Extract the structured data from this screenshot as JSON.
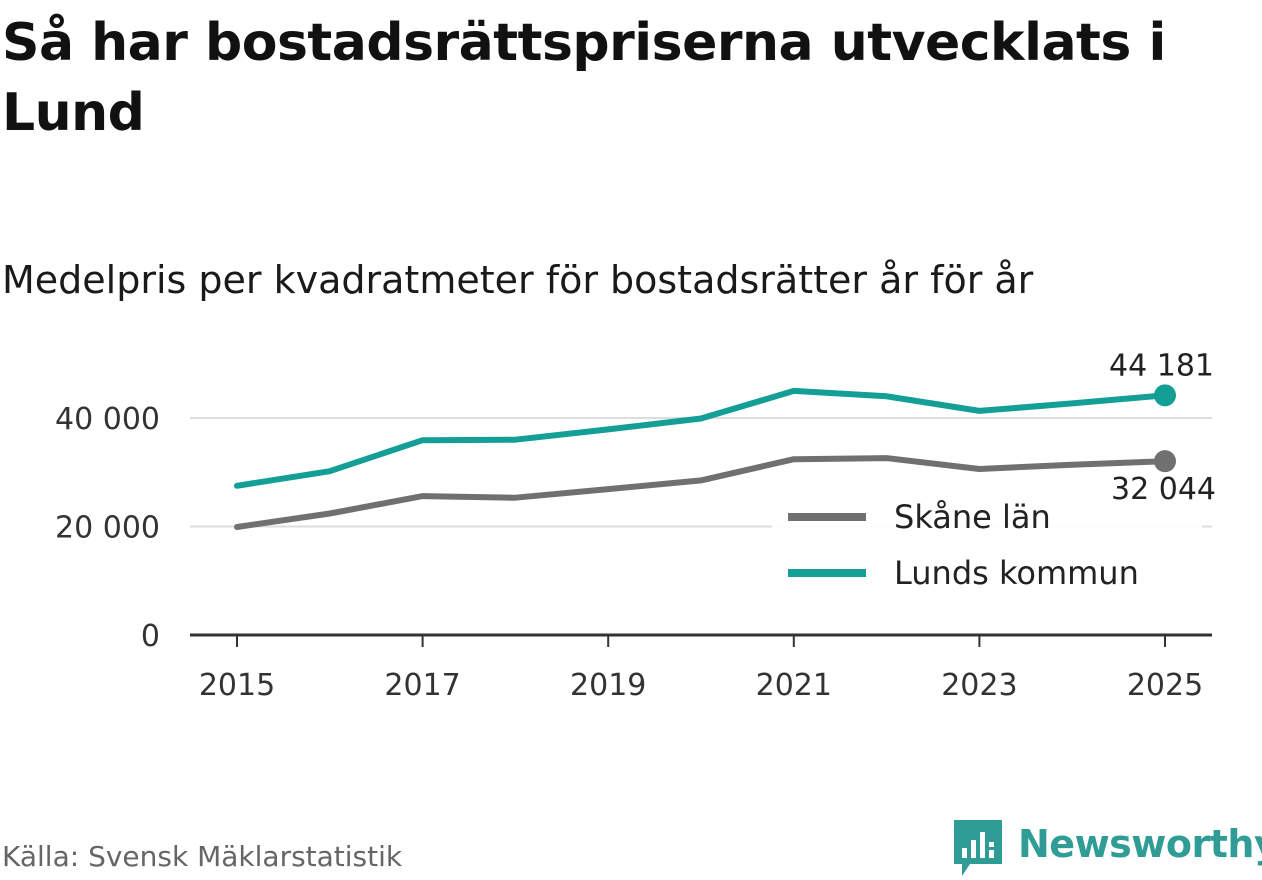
{
  "title": "Så har bostadsrättspriserna utvecklats i Lund",
  "subtitle": "Medelpris per kvadratmeter för bostadsrätter år för år",
  "source": "Källa: Svensk Mäklarstatistik",
  "brand": {
    "name": "Newsworthy",
    "icon": "newsworthy-logo-icon",
    "color": "#2f9c95"
  },
  "colors": {
    "skane": "#707070",
    "lund": "#139e96",
    "grid": "#dddddd",
    "axis": "#333333"
  },
  "chart_data": {
    "type": "line",
    "title": "Så har bostadsrättspriserna utvecklats i Lund",
    "subtitle": "Medelpris per kvadratmeter för bostadsrätter år för år",
    "xlabel": "",
    "ylabel": "",
    "x": [
      2015,
      2016,
      2017,
      2018,
      2019,
      2020,
      2021,
      2022,
      2023,
      2024,
      2025
    ],
    "xticks": [
      "2015",
      "2017",
      "2019",
      "2021",
      "2023",
      "2025"
    ],
    "xlim": [
      2015,
      2025
    ],
    "ylim": [
      0,
      44181
    ],
    "yticks": [
      {
        "value": 0,
        "label": "0"
      },
      {
        "value": 20000,
        "label": "20 000"
      },
      {
        "value": 40000,
        "label": "40 000"
      }
    ],
    "grid": true,
    "legend_position": "right",
    "series": [
      {
        "name": "Skåne län",
        "color": "#707070",
        "values": [
          19900,
          22400,
          25600,
          25300,
          26900,
          28500,
          32400,
          32600,
          30600,
          31400,
          32044
        ],
        "end_label": "32 044"
      },
      {
        "name": "Lunds kommun",
        "color": "#139e96",
        "values": [
          27500,
          30200,
          35900,
          36000,
          37900,
          39900,
          45000,
          44000,
          41300,
          42700,
          44181
        ],
        "end_label": "44 181"
      }
    ]
  }
}
